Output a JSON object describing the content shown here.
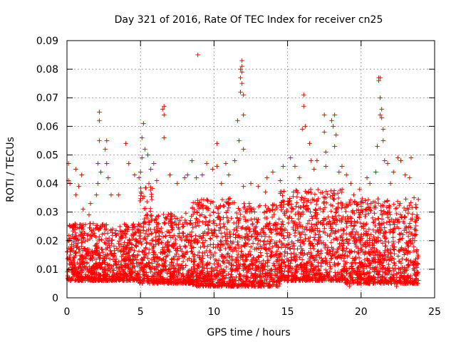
{
  "chart_data": {
    "type": "scatter",
    "title": "Day 321 of 2016, Rate Of TEC Index for receiver cn25",
    "xlabel": "GPS time / hours",
    "ylabel": "ROTI / TECUs",
    "xlim": [
      0,
      25
    ],
    "ylim": [
      0,
      0.09
    ],
    "xticks": [
      0,
      5,
      10,
      15,
      20,
      25
    ],
    "xtick_labels": [
      "0",
      "5",
      "10",
      "15",
      "20",
      "25"
    ],
    "yticks": [
      0,
      0.01,
      0.02,
      0.03,
      0.04,
      0.05,
      0.06,
      0.07,
      0.08,
      0.09
    ],
    "ytick_labels": [
      "0",
      "0.01",
      "0.02",
      "0.03",
      "0.04",
      "0.05",
      "0.06",
      "0.07",
      "0.08",
      "0.09"
    ],
    "grid": true,
    "marker": "+",
    "point_color": "#ff0000",
    "series": [
      {
        "name": "ROTI",
        "points": [
          [
            0.1,
            0.047
          ],
          [
            0.1,
            0.041
          ],
          [
            0.2,
            0.04
          ],
          [
            0.6,
            0.045
          ],
          [
            0.6,
            0.036
          ],
          [
            0.8,
            0.039
          ],
          [
            1.0,
            0.043
          ],
          [
            1.1,
            0.031
          ],
          [
            1.5,
            0.029
          ],
          [
            1.6,
            0.033
          ],
          [
            2.0,
            0.036
          ],
          [
            2.1,
            0.04
          ],
          [
            2.1,
            0.047
          ],
          [
            2.2,
            0.055
          ],
          [
            2.2,
            0.062
          ],
          [
            2.2,
            0.065
          ],
          [
            2.3,
            0.044
          ],
          [
            2.6,
            0.052
          ],
          [
            2.7,
            0.055
          ],
          [
            2.7,
            0.047
          ],
          [
            2.8,
            0.042
          ],
          [
            3.0,
            0.036
          ],
          [
            3.5,
            0.036
          ],
          [
            4.0,
            0.054
          ],
          [
            4.2,
            0.047
          ],
          [
            4.6,
            0.043
          ],
          [
            4.9,
            0.042
          ],
          [
            5.0,
            0.044
          ],
          [
            5.1,
            0.049
          ],
          [
            5.1,
            0.056
          ],
          [
            5.2,
            0.061
          ],
          [
            5.3,
            0.052
          ],
          [
            5.5,
            0.05
          ],
          [
            5.7,
            0.045
          ],
          [
            5.9,
            0.047
          ],
          [
            6.1,
            0.041
          ],
          [
            6.5,
            0.066
          ],
          [
            6.6,
            0.064
          ],
          [
            6.6,
            0.067
          ],
          [
            6.6,
            0.056
          ],
          [
            7.0,
            0.043
          ],
          [
            7.5,
            0.04
          ],
          [
            8.0,
            0.042
          ],
          [
            8.2,
            0.043
          ],
          [
            8.5,
            0.048
          ],
          [
            8.8,
            0.042
          ],
          [
            8.9,
            0.085
          ],
          [
            9.2,
            0.043
          ],
          [
            9.5,
            0.047
          ],
          [
            9.9,
            0.045
          ],
          [
            10.2,
            0.054
          ],
          [
            10.2,
            0.046
          ],
          [
            10.5,
            0.04
          ],
          [
            10.8,
            0.047
          ],
          [
            11.0,
            0.043
          ],
          [
            11.4,
            0.048
          ],
          [
            11.6,
            0.062
          ],
          [
            11.7,
            0.055
          ],
          [
            11.8,
            0.072
          ],
          [
            11.8,
            0.077
          ],
          [
            11.8,
            0.08
          ],
          [
            11.9,
            0.083
          ],
          [
            11.9,
            0.081
          ],
          [
            11.9,
            0.079
          ],
          [
            11.9,
            0.075
          ],
          [
            12.0,
            0.071
          ],
          [
            12.0,
            0.064
          ],
          [
            12.0,
            0.052
          ],
          [
            12.0,
            0.039
          ],
          [
            12.5,
            0.04
          ],
          [
            13.0,
            0.039
          ],
          [
            13.5,
            0.037
          ],
          [
            13.6,
            0.042
          ],
          [
            14.0,
            0.044
          ],
          [
            14.5,
            0.041
          ],
          [
            14.7,
            0.046
          ],
          [
            15.2,
            0.049
          ],
          [
            15.5,
            0.046
          ],
          [
            15.8,
            0.042
          ],
          [
            16.0,
            0.059
          ],
          [
            16.1,
            0.071
          ],
          [
            16.1,
            0.067
          ],
          [
            16.2,
            0.06
          ],
          [
            16.5,
            0.054
          ],
          [
            16.6,
            0.048
          ],
          [
            16.8,
            0.045
          ],
          [
            17.0,
            0.048
          ],
          [
            17.5,
            0.064
          ],
          [
            17.5,
            0.058
          ],
          [
            17.6,
            0.051
          ],
          [
            17.6,
            0.046
          ],
          [
            18.0,
            0.062
          ],
          [
            18.1,
            0.06
          ],
          [
            18.2,
            0.053
          ],
          [
            18.2,
            0.064
          ],
          [
            18.3,
            0.057
          ],
          [
            18.5,
            0.044
          ],
          [
            18.7,
            0.046
          ],
          [
            19.0,
            0.043
          ],
          [
            19.3,
            0.04
          ],
          [
            19.5,
            0.036
          ],
          [
            19.9,
            0.038
          ],
          [
            20.4,
            0.042
          ],
          [
            20.6,
            0.04
          ],
          [
            21.0,
            0.044
          ],
          [
            21.1,
            0.053
          ],
          [
            21.2,
            0.077
          ],
          [
            21.2,
            0.076
          ],
          [
            21.3,
            0.077
          ],
          [
            21.3,
            0.07
          ],
          [
            21.3,
            0.064
          ],
          [
            21.4,
            0.066
          ],
          [
            21.4,
            0.063
          ],
          [
            21.5,
            0.059
          ],
          [
            21.5,
            0.055
          ],
          [
            21.6,
            0.048
          ],
          [
            21.8,
            0.047
          ],
          [
            22.0,
            0.04
          ],
          [
            22.2,
            0.044
          ],
          [
            22.5,
            0.049
          ],
          [
            22.7,
            0.048
          ],
          [
            23.0,
            0.043
          ],
          [
            23.3,
            0.042
          ],
          [
            23.4,
            0.049
          ],
          [
            23.6,
            0.035
          ],
          [
            23.8,
            0.029
          ],
          [
            0.3,
            0.009
          ],
          [
            0.5,
            0.014
          ],
          [
            1.2,
            0.011
          ],
          [
            2.5,
            0.006
          ],
          [
            3.2,
            0.008
          ],
          [
            4.5,
            0.012
          ],
          [
            6.0,
            0.01
          ],
          [
            7.2,
            0.008
          ],
          [
            8.6,
            0.006
          ],
          [
            9.0,
            0.004
          ],
          [
            9.6,
            0.006
          ],
          [
            10.3,
            0.008
          ],
          [
            11.2,
            0.005
          ],
          [
            12.3,
            0.007
          ],
          [
            12.8,
            0.004
          ],
          [
            13.3,
            0.005
          ],
          [
            14.2,
            0.008
          ],
          [
            15.0,
            0.006
          ],
          [
            15.6,
            0.009
          ],
          [
            16.4,
            0.007
          ],
          [
            17.2,
            0.008
          ],
          [
            18.4,
            0.006
          ],
          [
            19.2,
            0.004
          ],
          [
            19.8,
            0.005
          ],
          [
            20.2,
            0.008
          ],
          [
            21.7,
            0.006
          ],
          [
            22.4,
            0.004
          ],
          [
            22.9,
            0.007
          ],
          [
            23.5,
            0.006
          ],
          [
            23.8,
            0.009
          ]
        ],
        "dense_band": {
          "description": "dense cloud of points covering the whole day, mostly between 0.005 and 0.03",
          "x_range": [
            0,
            23.9
          ],
          "bands": [
            {
              "x_range": [
                0,
                4.9
              ],
              "y_range": [
                0.006,
                0.026
              ]
            },
            {
              "x_range": [
                4.9,
                5.8
              ],
              "y_range": [
                0.005,
                0.04
              ]
            },
            {
              "x_range": [
                5.8,
                8.5
              ],
              "y_range": [
                0.005,
                0.03
              ]
            },
            {
              "x_range": [
                8.5,
                11.5
              ],
              "y_range": [
                0.004,
                0.035
              ]
            },
            {
              "x_range": [
                11.5,
                14.5
              ],
              "y_range": [
                0.004,
                0.033
              ]
            },
            {
              "x_range": [
                14.5,
                18.8
              ],
              "y_range": [
                0.006,
                0.038
              ]
            },
            {
              "x_range": [
                18.8,
                23.9
              ],
              "y_range": [
                0.005,
                0.035
              ]
            }
          ]
        }
      }
    ]
  }
}
